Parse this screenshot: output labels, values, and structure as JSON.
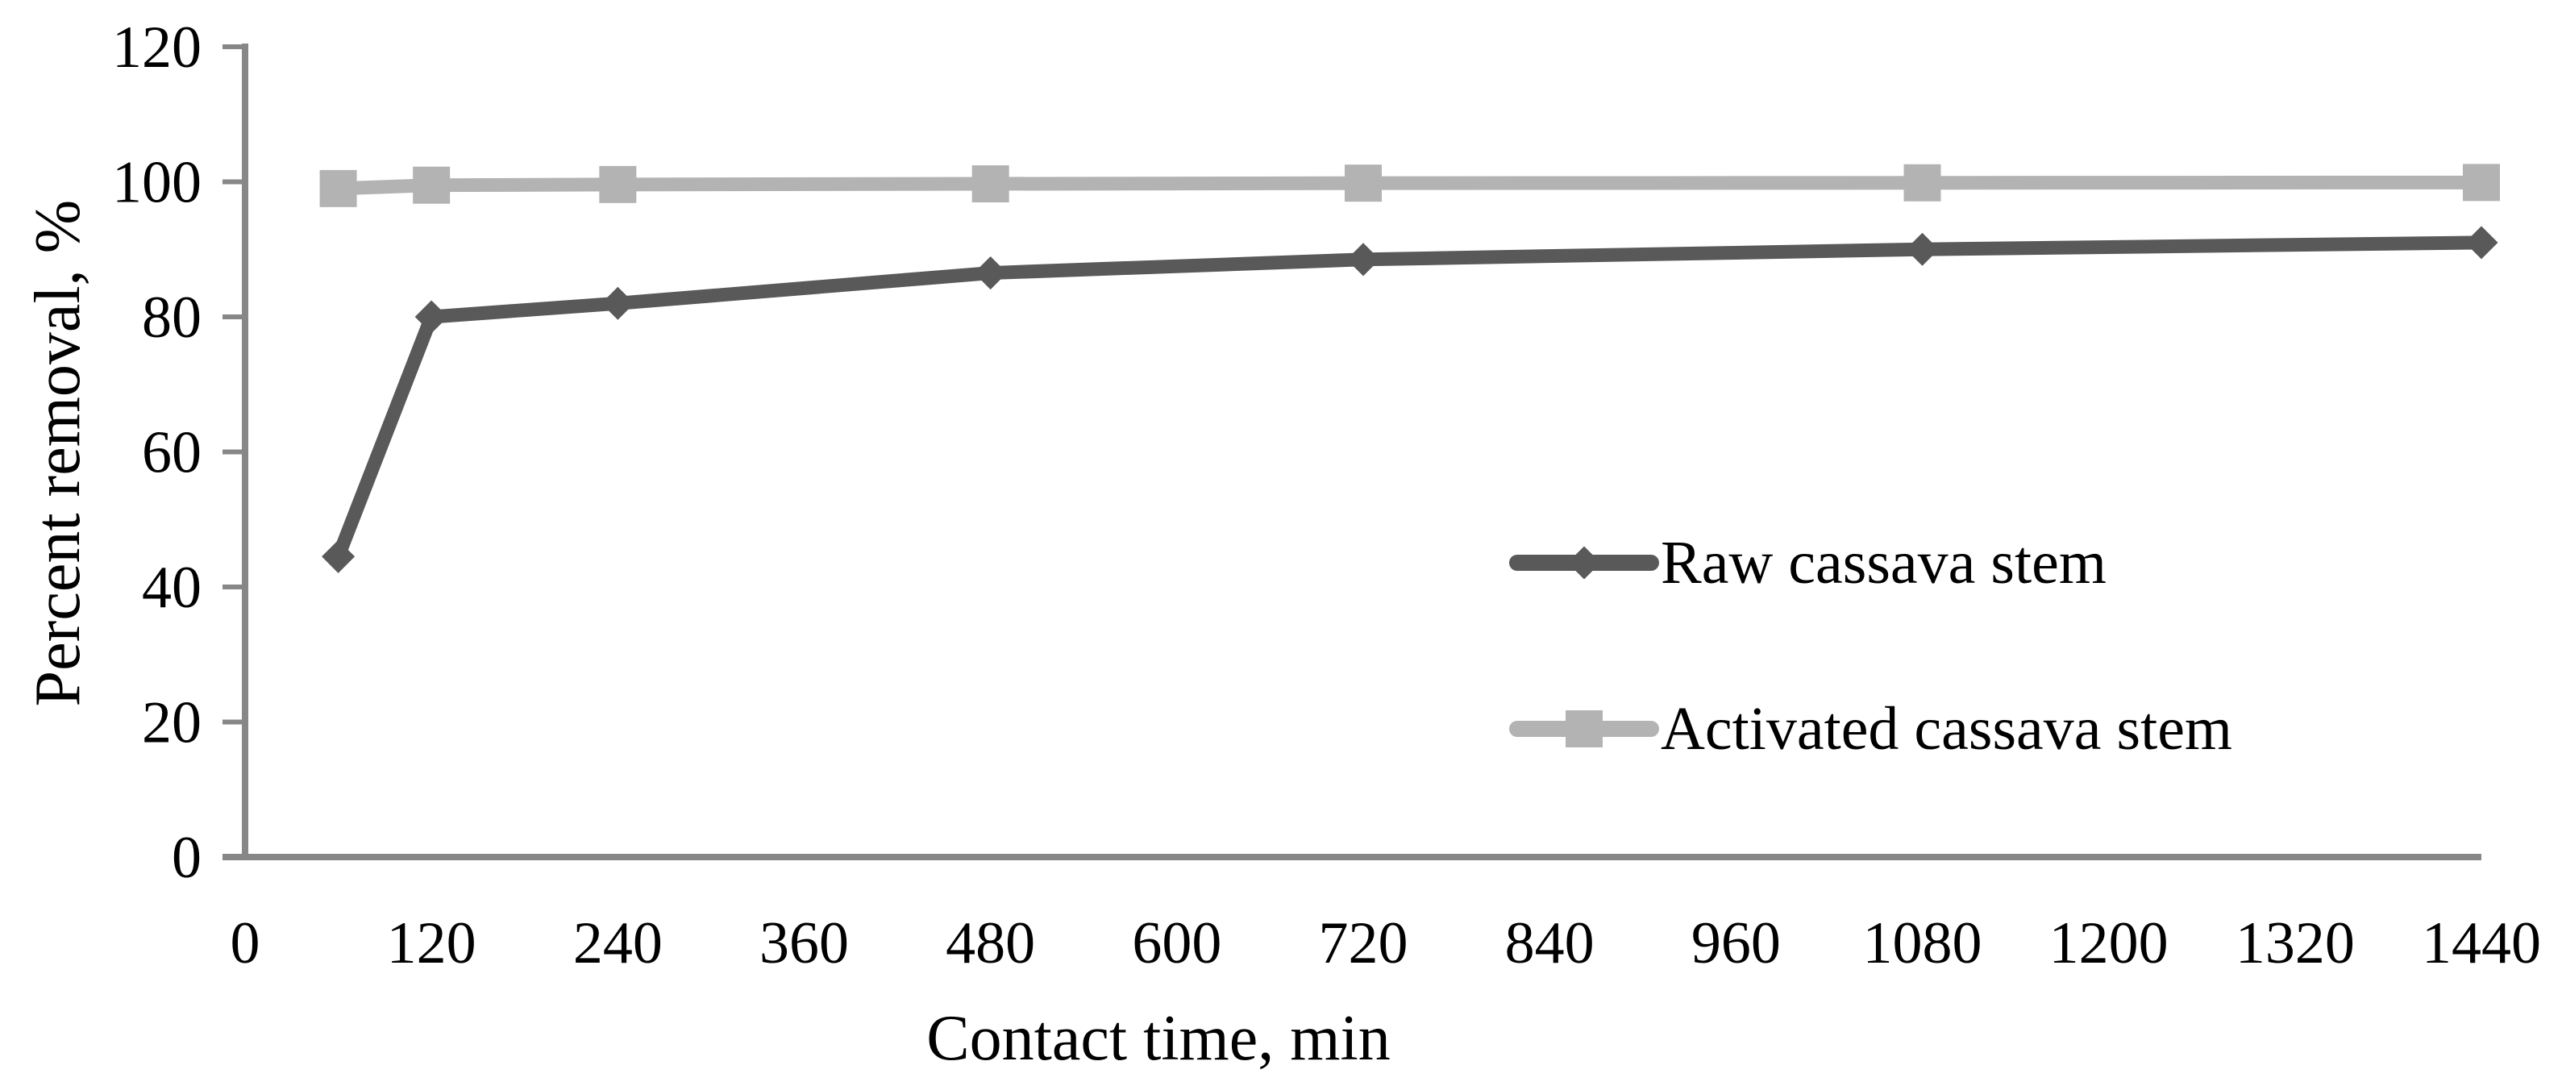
{
  "chart_data": {
    "type": "line",
    "title": "",
    "xlabel": "Contact time, min",
    "ylabel": "Percent removal, %",
    "x": [
      60,
      120,
      240,
      480,
      720,
      1080,
      1440
    ],
    "series": [
      {
        "name": "Raw cassava stem",
        "marker": "diamond",
        "color": "#595959",
        "values": [
          44.5,
          80,
          82,
          86.5,
          88.5,
          90,
          91
        ]
      },
      {
        "name": "Activated cassava stem",
        "marker": "square",
        "color": "#b3b3b3",
        "values": [
          99,
          99.5,
          99.6,
          99.7,
          99.8,
          99.85,
          99.9
        ]
      }
    ],
    "xlim": [
      0,
      1440
    ],
    "ylim": [
      0,
      120
    ],
    "xticks": [
      0,
      120,
      240,
      360,
      480,
      600,
      720,
      840,
      960,
      1080,
      1200,
      1320,
      1440
    ],
    "yticks": [
      0,
      20,
      40,
      60,
      80,
      100,
      120
    ],
    "grid": false,
    "legend_position": "middle-right",
    "axis_color": "#878787",
    "text_color": "#000000"
  }
}
